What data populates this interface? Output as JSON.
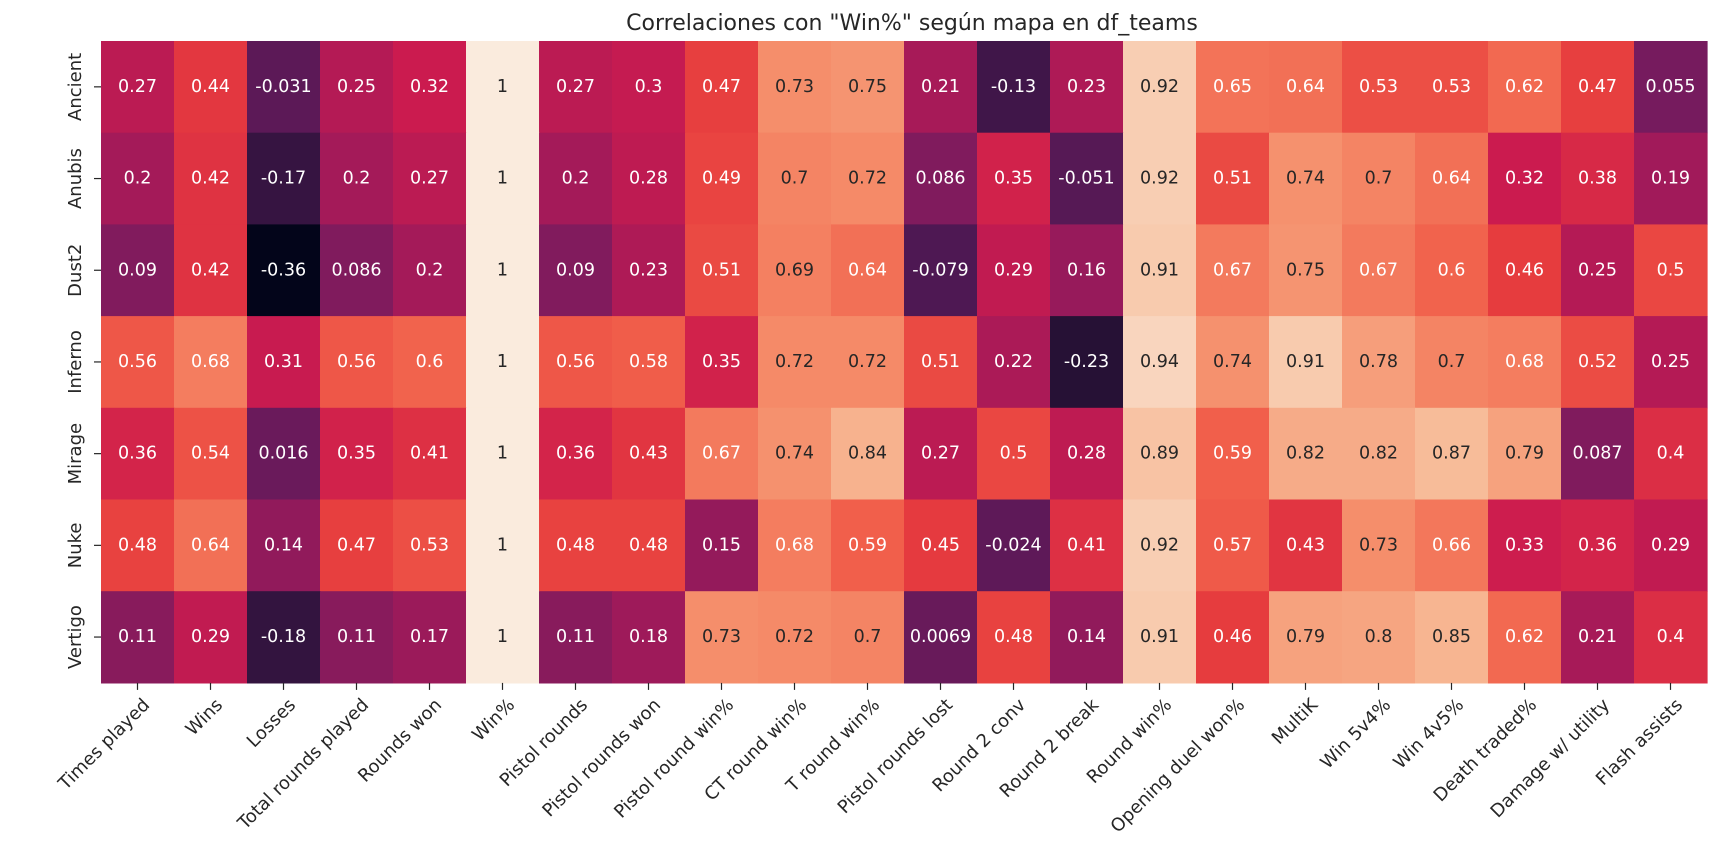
{
  "chart_data": {
    "type": "heatmap",
    "title": "Correlaciones con \"Win%\" según mapa en df_teams",
    "xlabel": "",
    "ylabel": "",
    "colormap": "rocket",
    "vmin": -0.36,
    "vmax": 1,
    "annotated": true,
    "colorbar": false,
    "x_labels": [
      "Times played",
      "Wins",
      "Losses",
      "Total rounds played",
      "Rounds won",
      "Win%",
      "Pistol rounds",
      "Pistol rounds won",
      "Pistol round win%",
      "CT round win%",
      "T round win%",
      "Pistol rounds lost",
      "Round 2 conv",
      "Round 2 break",
      "Round win%",
      "Opening duel won%",
      "MultiK",
      "Win 5v4%",
      "Win 4v5%",
      "Death traded%",
      "Damage w/ utility",
      "Flash assists"
    ],
    "y_labels": [
      "Ancient",
      "Anubis",
      "Dust2",
      "Inferno",
      "Mirage",
      "Nuke",
      "Vertigo"
    ],
    "values": [
      [
        0.27,
        0.44,
        -0.031,
        0.25,
        0.32,
        1,
        0.27,
        0.3,
        0.47,
        0.73,
        0.75,
        0.21,
        -0.13,
        0.23,
        0.92,
        0.65,
        0.64,
        0.53,
        0.53,
        0.62,
        0.47,
        0.055
      ],
      [
        0.2,
        0.42,
        -0.17,
        0.2,
        0.27,
        1,
        0.2,
        0.28,
        0.49,
        0.7,
        0.72,
        0.086,
        0.35,
        -0.051,
        0.92,
        0.51,
        0.74,
        0.7,
        0.64,
        0.32,
        0.38,
        0.19
      ],
      [
        0.09,
        0.42,
        -0.36,
        0.086,
        0.2,
        1,
        0.09,
        0.23,
        0.51,
        0.69,
        0.64,
        -0.079,
        0.29,
        0.16,
        0.91,
        0.67,
        0.75,
        0.67,
        0.6,
        0.46,
        0.25,
        0.5
      ],
      [
        0.56,
        0.68,
        0.31,
        0.56,
        0.6,
        1,
        0.56,
        0.58,
        0.35,
        0.72,
        0.72,
        0.51,
        0.22,
        -0.23,
        0.94,
        0.74,
        0.91,
        0.78,
        0.7,
        0.68,
        0.52,
        0.25
      ],
      [
        0.36,
        0.54,
        0.016,
        0.35,
        0.41,
        1,
        0.36,
        0.43,
        0.67,
        0.74,
        0.84,
        0.27,
        0.5,
        0.28,
        0.89,
        0.59,
        0.82,
        0.82,
        0.87,
        0.79,
        0.087,
        0.4
      ],
      [
        0.48,
        0.64,
        0.14,
        0.47,
        0.53,
        1,
        0.48,
        0.48,
        0.15,
        0.68,
        0.59,
        0.45,
        -0.024,
        0.41,
        0.92,
        0.57,
        0.43,
        0.73,
        0.66,
        0.33,
        0.36,
        0.29
      ],
      [
        0.11,
        0.29,
        -0.18,
        0.11,
        0.17,
        1,
        0.11,
        0.18,
        0.73,
        0.72,
        0.7,
        0.0069,
        0.48,
        0.14,
        0.91,
        0.46,
        0.79,
        0.8,
        0.85,
        0.62,
        0.21,
        0.4
      ]
    ]
  }
}
